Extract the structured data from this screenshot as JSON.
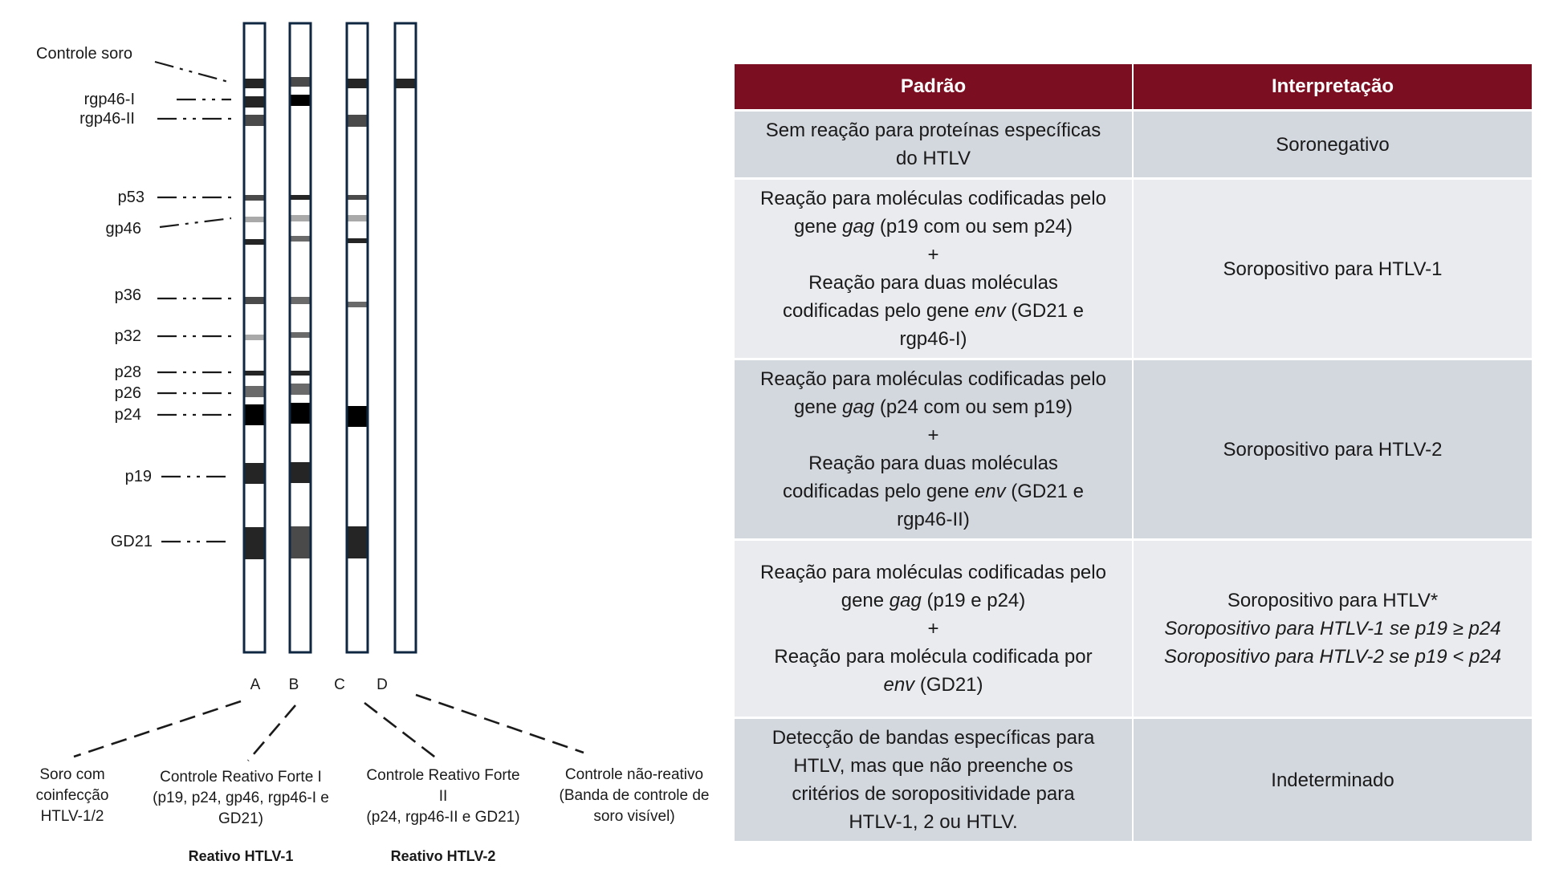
{
  "strip_labels": [
    "Controle soro",
    "rgp46-I",
    "rgp46-II",
    "p53",
    "gp46",
    "p36",
    "p32",
    "p28",
    "p26",
    "p24",
    "p19",
    "GD21"
  ],
  "lane_letters": [
    "A",
    "B",
    "C",
    "D"
  ],
  "lane_captions": [
    {
      "lines": [
        "Soro com",
        "coinfecção",
        "HTLV-1/2"
      ]
    },
    {
      "lines": [
        "Controle Reativo Forte I",
        "(p19, p24, gp46, rgp46-I e",
        "GD21)"
      ]
    },
    {
      "lines": [
        "Controle Reativo Forte",
        "II",
        "(p24, rgp46-II e GD21)"
      ]
    },
    {
      "lines": [
        "Controle não-reativo",
        "(Banda de controle de",
        "soro visível)"
      ]
    }
  ],
  "group_labels": [
    "Reativo HTLV-1",
    "Reativo HTLV-2"
  ],
  "band_colors": {
    "strong": "#000000",
    "dark": "#252525",
    "medium": "#4a4a4a",
    "gray": "#6a6a6a",
    "light": "#a9a9a9",
    "strip_border": "#0f2740"
  },
  "table": {
    "headers": [
      "Padrão",
      "Interpretação"
    ],
    "header_color": "#7b0e21",
    "rows": [
      {
        "pattern": [
          {
            "segments": [
              {
                "text": "Sem reação para proteínas específicas"
              }
            ]
          },
          {
            "segments": [
              {
                "text": "do HTLV"
              }
            ]
          }
        ],
        "interpretation": [
          {
            "segments": [
              {
                "text": "Soronegativo"
              }
            ]
          }
        ]
      },
      {
        "pattern": [
          {
            "segments": [
              {
                "text": "Reação para moléculas codificadas pelo"
              }
            ]
          },
          {
            "segments": [
              {
                "text": "gene "
              },
              {
                "text": "gag",
                "italic": true
              },
              {
                "text": " (p19 com ou sem p24)"
              }
            ]
          },
          {
            "segments": [
              {
                "text": "+"
              }
            ]
          },
          {
            "segments": [
              {
                "text": "Reação para duas moléculas"
              }
            ]
          },
          {
            "segments": [
              {
                "text": "codificadas pelo gene "
              },
              {
                "text": "env",
                "italic": true
              },
              {
                "text": " (GD21 e"
              }
            ]
          },
          {
            "segments": [
              {
                "text": "rgp46-I)"
              }
            ]
          }
        ],
        "interpretation": [
          {
            "segments": [
              {
                "text": "Soropositivo para HTLV-1"
              }
            ]
          }
        ]
      },
      {
        "pattern": [
          {
            "segments": [
              {
                "text": "Reação para moléculas codificadas pelo"
              }
            ]
          },
          {
            "segments": [
              {
                "text": "gene "
              },
              {
                "text": "gag",
                "italic": true
              },
              {
                "text": " (p24 com ou sem p19)"
              }
            ]
          },
          {
            "segments": [
              {
                "text": "+"
              }
            ]
          },
          {
            "segments": [
              {
                "text": "Reação para duas moléculas"
              }
            ]
          },
          {
            "segments": [
              {
                "text": "codificadas pelo gene "
              },
              {
                "text": "env",
                "italic": true
              },
              {
                "text": " (GD21 e"
              }
            ]
          },
          {
            "segments": [
              {
                "text": "rgp46-II)"
              }
            ]
          }
        ],
        "interpretation": [
          {
            "segments": [
              {
                "text": "Soropositivo para HTLV-2"
              }
            ]
          }
        ]
      },
      {
        "pattern": [
          {
            "segments": [
              {
                "text": "Reação para moléculas codificadas pelo"
              }
            ]
          },
          {
            "segments": [
              {
                "text": "gene "
              },
              {
                "text": "gag",
                "italic": true
              },
              {
                "text": " (p19 e p24)"
              }
            ]
          },
          {
            "segments": [
              {
                "text": "+"
              }
            ]
          },
          {
            "segments": [
              {
                "text": "Reação para molécula codificada por"
              }
            ]
          },
          {
            "segments": [
              {
                "text": "env",
                "italic": true
              },
              {
                "text": " (GD21)"
              }
            ]
          }
        ],
        "interpretation": [
          {
            "segments": [
              {
                "text": "Soropositivo para HTLV*"
              }
            ]
          },
          {
            "segments": [
              {
                "text": "Soropositivo para HTLV-1 se p19 ≥ p24",
                "italic": true
              }
            ]
          },
          {
            "segments": [
              {
                "text": "Soropositivo para HTLV-2 se p19 < p24",
                "italic": true
              }
            ]
          }
        ]
      },
      {
        "pattern": [
          {
            "segments": [
              {
                "text": "Detecção de bandas específicas para"
              }
            ]
          },
          {
            "segments": [
              {
                "text": "HTLV, mas que não preenche os"
              }
            ]
          },
          {
            "segments": [
              {
                "text": "critérios de soropositividade para"
              }
            ]
          },
          {
            "segments": [
              {
                "text": "HTLV-1, 2 ou HTLV."
              }
            ]
          }
        ],
        "interpretation": [
          {
            "segments": [
              {
                "text": "Indeterminado"
              }
            ]
          }
        ]
      }
    ]
  }
}
